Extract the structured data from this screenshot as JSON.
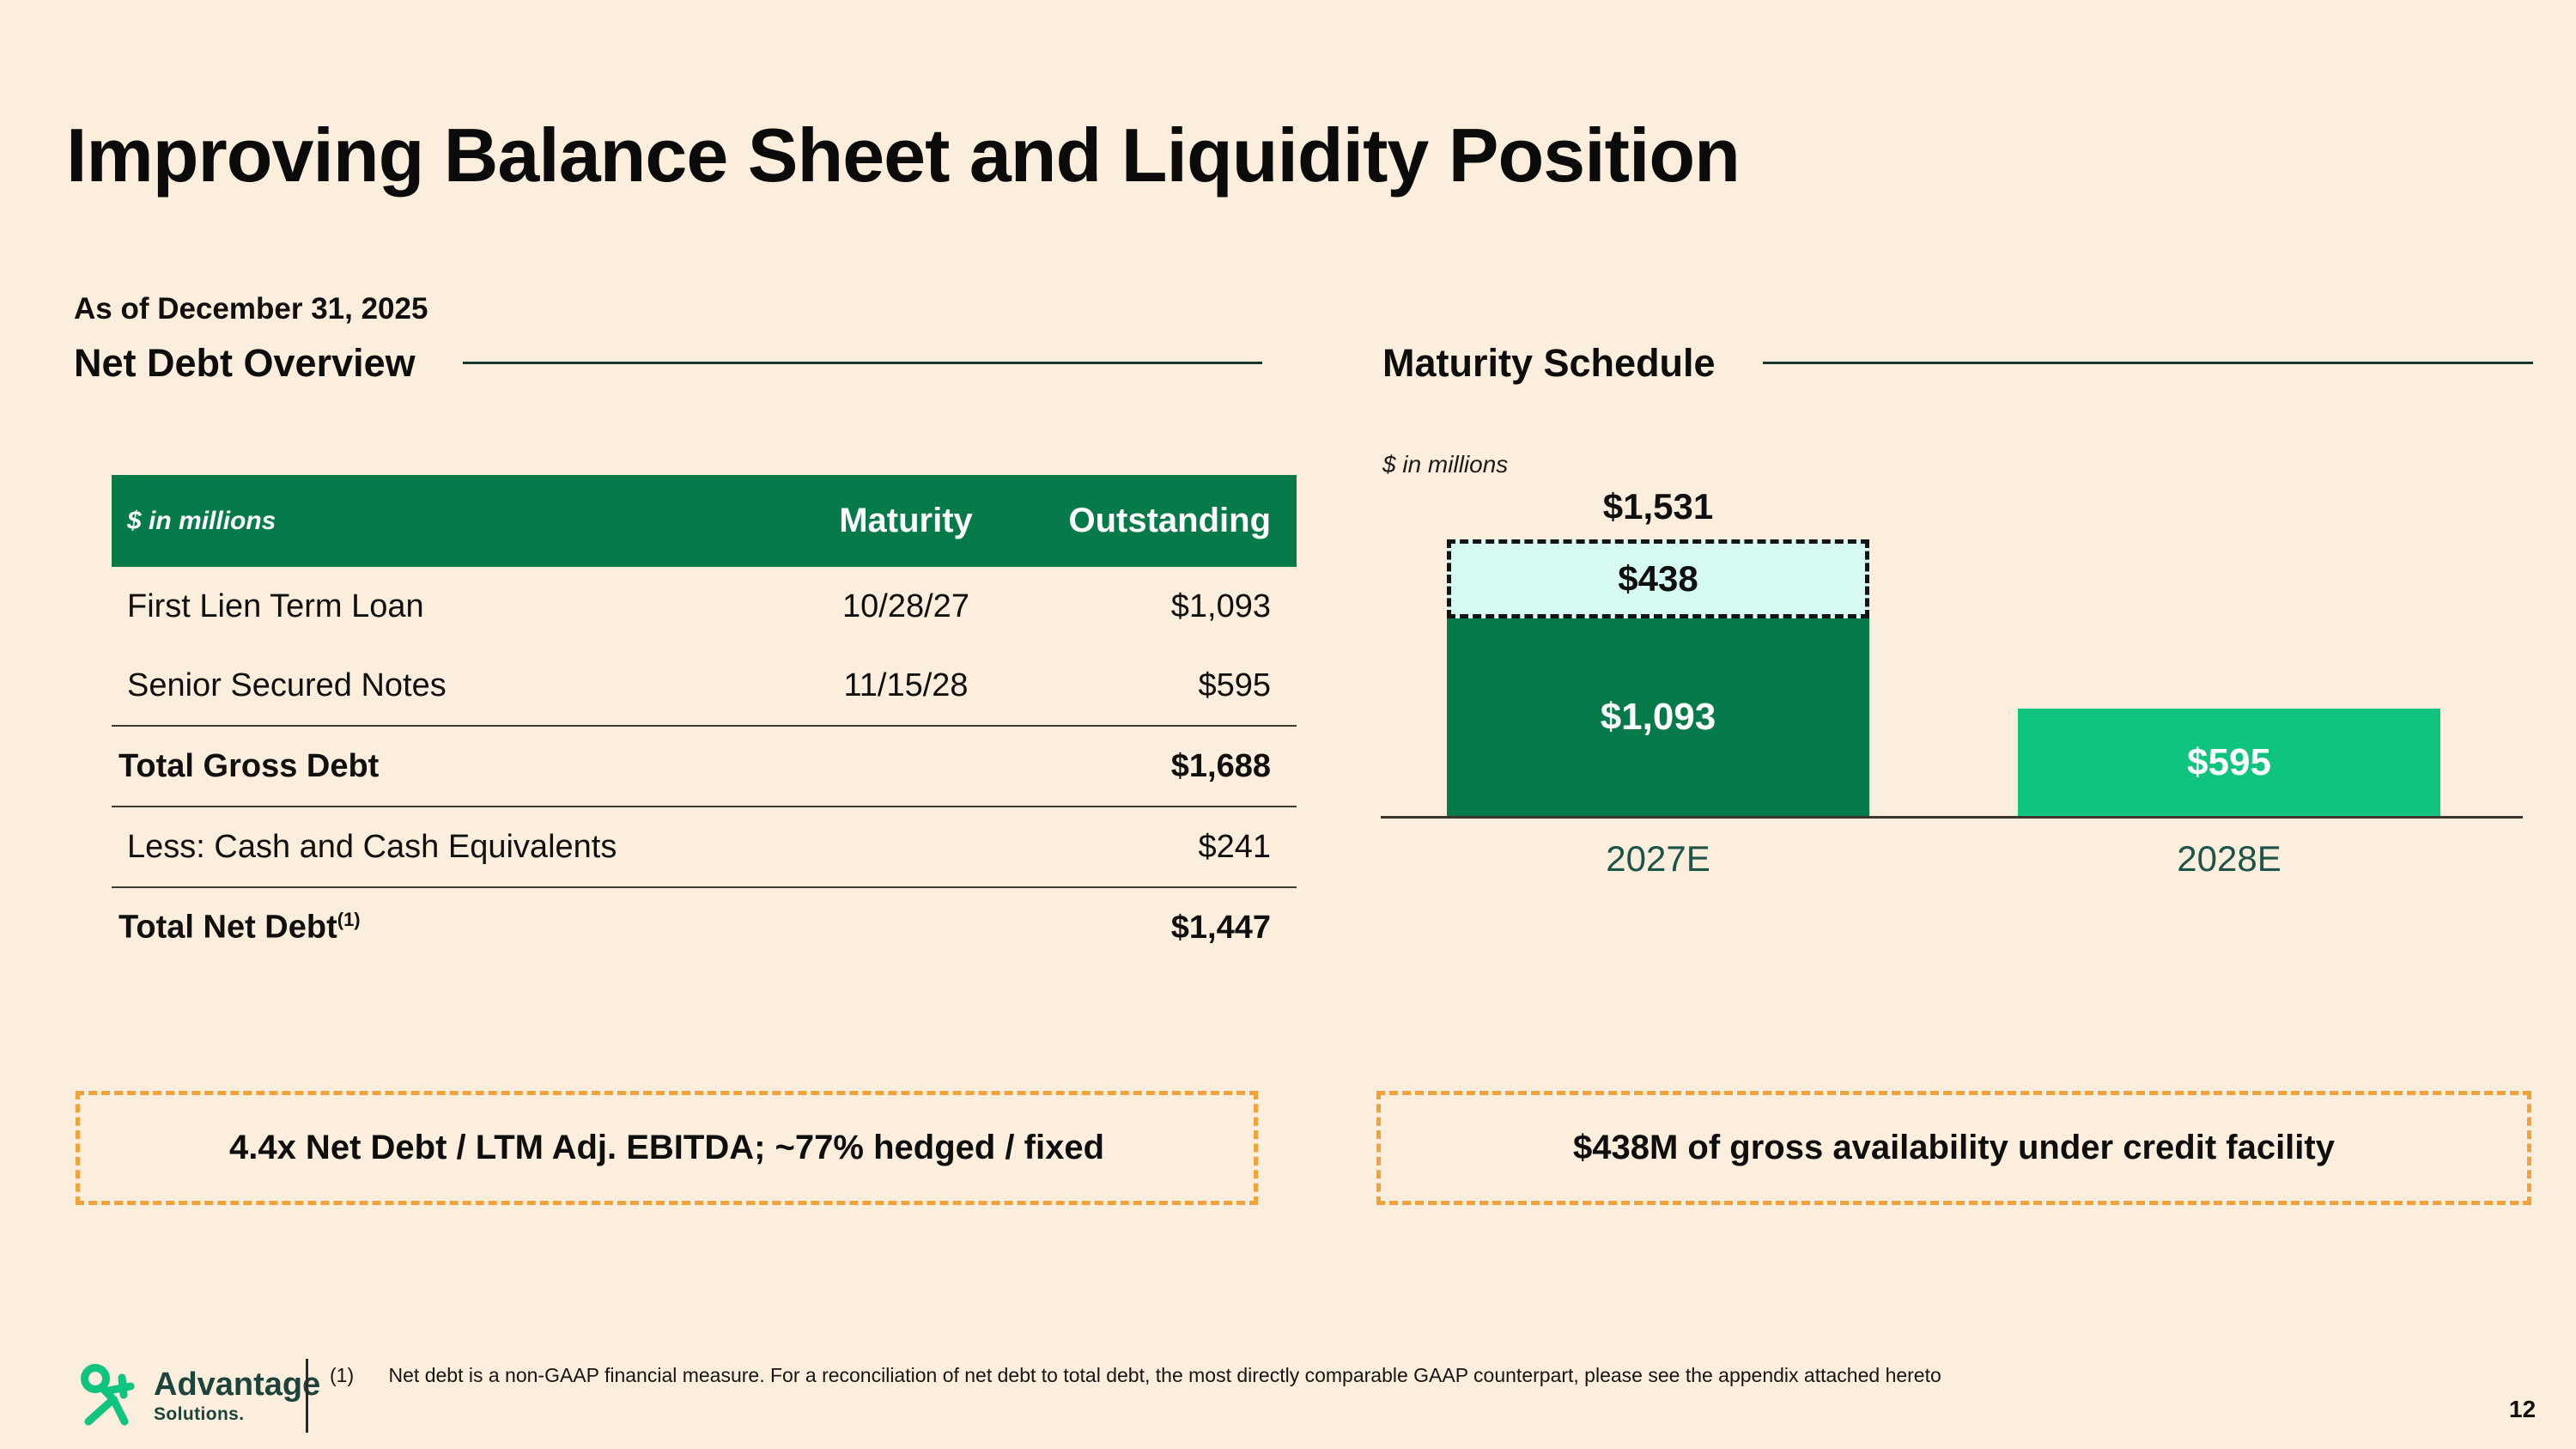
{
  "slide": {
    "title": "Improving Balance Sheet and Liquidity Position",
    "as_of_label": "As of December 31, 2025",
    "page_number": "12"
  },
  "net_debt": {
    "heading": "Net Debt Overview",
    "table": {
      "unit_label": "$ in millions",
      "columns": [
        "Maturity",
        "Outstanding"
      ],
      "rows": [
        {
          "label": "First Lien Term Loan",
          "maturity": "10/28/27",
          "outstanding": "$1,093",
          "bold": false,
          "divider_above": false
        },
        {
          "label": "Senior Secured Notes",
          "maturity": "11/15/28",
          "outstanding": "$595",
          "bold": false,
          "divider_above": false
        },
        {
          "label": "Total Gross Debt",
          "maturity": "",
          "outstanding": "$1,688",
          "bold": true,
          "divider_above": true
        },
        {
          "label": "Less: Cash and Cash Equivalents",
          "maturity": "",
          "outstanding": "$241",
          "bold": false,
          "divider_above": true
        },
        {
          "label": "Total Net Debt",
          "label_superscript": "(1)",
          "maturity": "",
          "outstanding": "$1,447",
          "bold": true,
          "divider_above": true
        }
      ]
    },
    "callout": "4.4x Net Debt / LTM Adj. EBITDA; ~77% hedged / fixed"
  },
  "maturity_schedule": {
    "heading": "Maturity Schedule",
    "unit_label": "$ in millions",
    "callout": "$438M of gross availability under credit facility"
  },
  "chart_data": {
    "type": "bar",
    "title": "Maturity Schedule",
    "unit": "$ in millions",
    "categories": [
      "2027E",
      "2028E"
    ],
    "bars": [
      {
        "category": "2027E",
        "total_label": "$1,531",
        "total_value": 1531,
        "segments": [
          {
            "label": "$1,093",
            "value": 1093,
            "fill": "#077a49",
            "text_color": "#ffffff",
            "border": "none"
          },
          {
            "label": "$438",
            "value": 438,
            "fill": "#d6faf1",
            "text_color": "#101010",
            "border": "dashed"
          }
        ]
      },
      {
        "category": "2028E",
        "segments": [
          {
            "label": "$595",
            "value": 595,
            "fill": "#0ec47e",
            "text_color": "#ffffff",
            "border": "none"
          }
        ]
      }
    ],
    "ylim": [
      0,
      1700
    ],
    "gridlines": false,
    "legend_position": "none",
    "value_axis_visible": false
  },
  "footer": {
    "logo": {
      "brand": "Advantage",
      "sub": "Solutions."
    },
    "footnote_marker": "(1)",
    "footnote_text": "Net debt is a non-GAAP financial measure. For a reconciliation of net debt to total debt, the most directly comparable GAAP counterpart, please see the appendix attached hereto"
  },
  "colors": {
    "background": "#fbeedd",
    "primary_green": "#077a49",
    "emerald_green": "#0ec47e",
    "light_cyan": "#d6faf1",
    "orange_accent": "#f2a23a",
    "heading_rule": "#14382b"
  }
}
